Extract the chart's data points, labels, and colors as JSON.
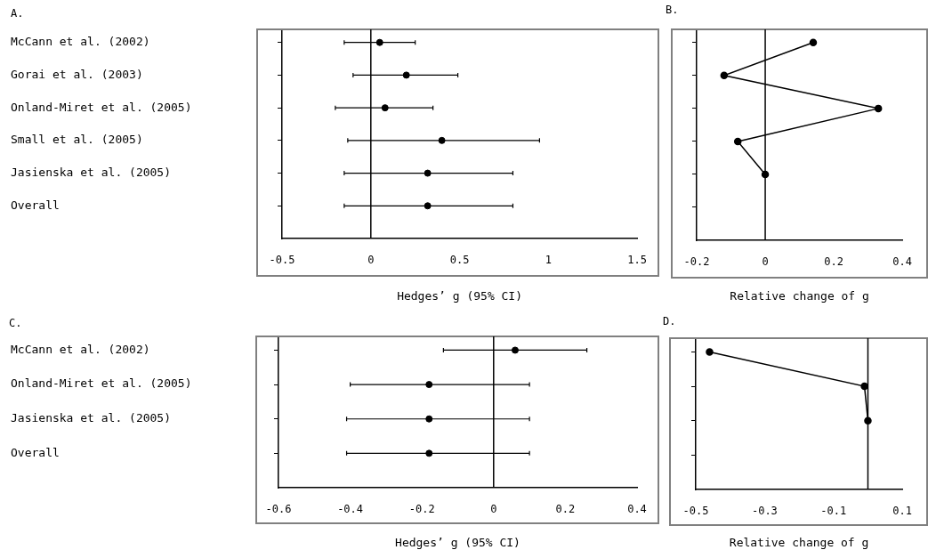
{
  "chart_data": [
    {
      "type": "scatter",
      "title": "A.",
      "xlabel": "Hedges’ g (95% CI)",
      "orientation": "horizontal",
      "categories": [
        "McCann et al. (2002)",
        "Gorai et al. (2003)",
        "Onland-Miret et al. (2005)",
        "Small et al. (2005)",
        "Jasienska et al. (2005)",
        "Overall"
      ],
      "values": [
        0.05,
        0.2,
        0.08,
        0.4,
        0.32,
        0.32
      ],
      "errors": [
        [
          -0.15,
          0.25
        ],
        [
          -0.1,
          0.49
        ],
        [
          -0.2,
          0.35
        ],
        [
          -0.13,
          0.95
        ],
        [
          -0.15,
          0.8
        ],
        [
          -0.15,
          0.8
        ]
      ],
      "color": "#000000",
      "marker": "circle",
      "xlim": [
        -0.5,
        1.5
      ],
      "xticks": [
        -0.5,
        0,
        0.5,
        1,
        1.5
      ],
      "ref_lines": [
        {
          "axis": "x",
          "value": 0
        }
      ]
    },
    {
      "type": "line",
      "title": "B.",
      "xlabel": "Relative change of g",
      "orientation": "horizontal",
      "categories": [
        null,
        null,
        null,
        null,
        null,
        null
      ],
      "values": [
        0.14,
        -0.12,
        0.33,
        -0.08,
        0,
        null
      ],
      "color": "#000000",
      "marker": "circle",
      "xlim": [
        -0.2,
        0.4
      ],
      "xticks": [
        -0.2,
        0,
        0.2,
        0.4
      ],
      "tick_labels": "x",
      "ref_lines": [
        {
          "axis": "x",
          "value": 0
        }
      ]
    },
    {
      "type": "scatter",
      "title": "C.",
      "xlabel": "Hedges’ g (95% CI)",
      "orientation": "horizontal",
      "categories": [
        "McCann et al. (2002)",
        "Onland-Miret et al. (2005)",
        "Jasienska et al. (2005)",
        "Overall"
      ],
      "values": [
        0.06,
        -0.18,
        -0.18,
        -0.18
      ],
      "errors": [
        [
          -0.14,
          0.26
        ],
        [
          -0.4,
          0.1
        ],
        [
          -0.41,
          0.1
        ],
        [
          -0.41,
          0.1
        ]
      ],
      "color": "#000000",
      "marker": "circle",
      "xlim": [
        -0.6,
        0.4
      ],
      "xticks": [
        -0.6,
        -0.4,
        -0.2,
        0,
        0.2,
        0.4
      ],
      "ref_lines": [
        {
          "axis": "x",
          "value": 0
        }
      ]
    },
    {
      "type": "line",
      "title": "D.",
      "xlabel": "Relative change of g",
      "orientation": "horizontal",
      "categories": [
        null,
        null,
        null,
        null
      ],
      "values": [
        -0.46,
        -0.01,
        0,
        null
      ],
      "color": "#000000",
      "marker": "circle",
      "xlim": [
        -0.5,
        0.1
      ],
      "xticks": [
        -0.5,
        -0.3,
        -0.1,
        0.1
      ],
      "tick_labels": "x",
      "ref_lines": [
        {
          "axis": "x",
          "value": 0
        }
      ]
    }
  ]
}
